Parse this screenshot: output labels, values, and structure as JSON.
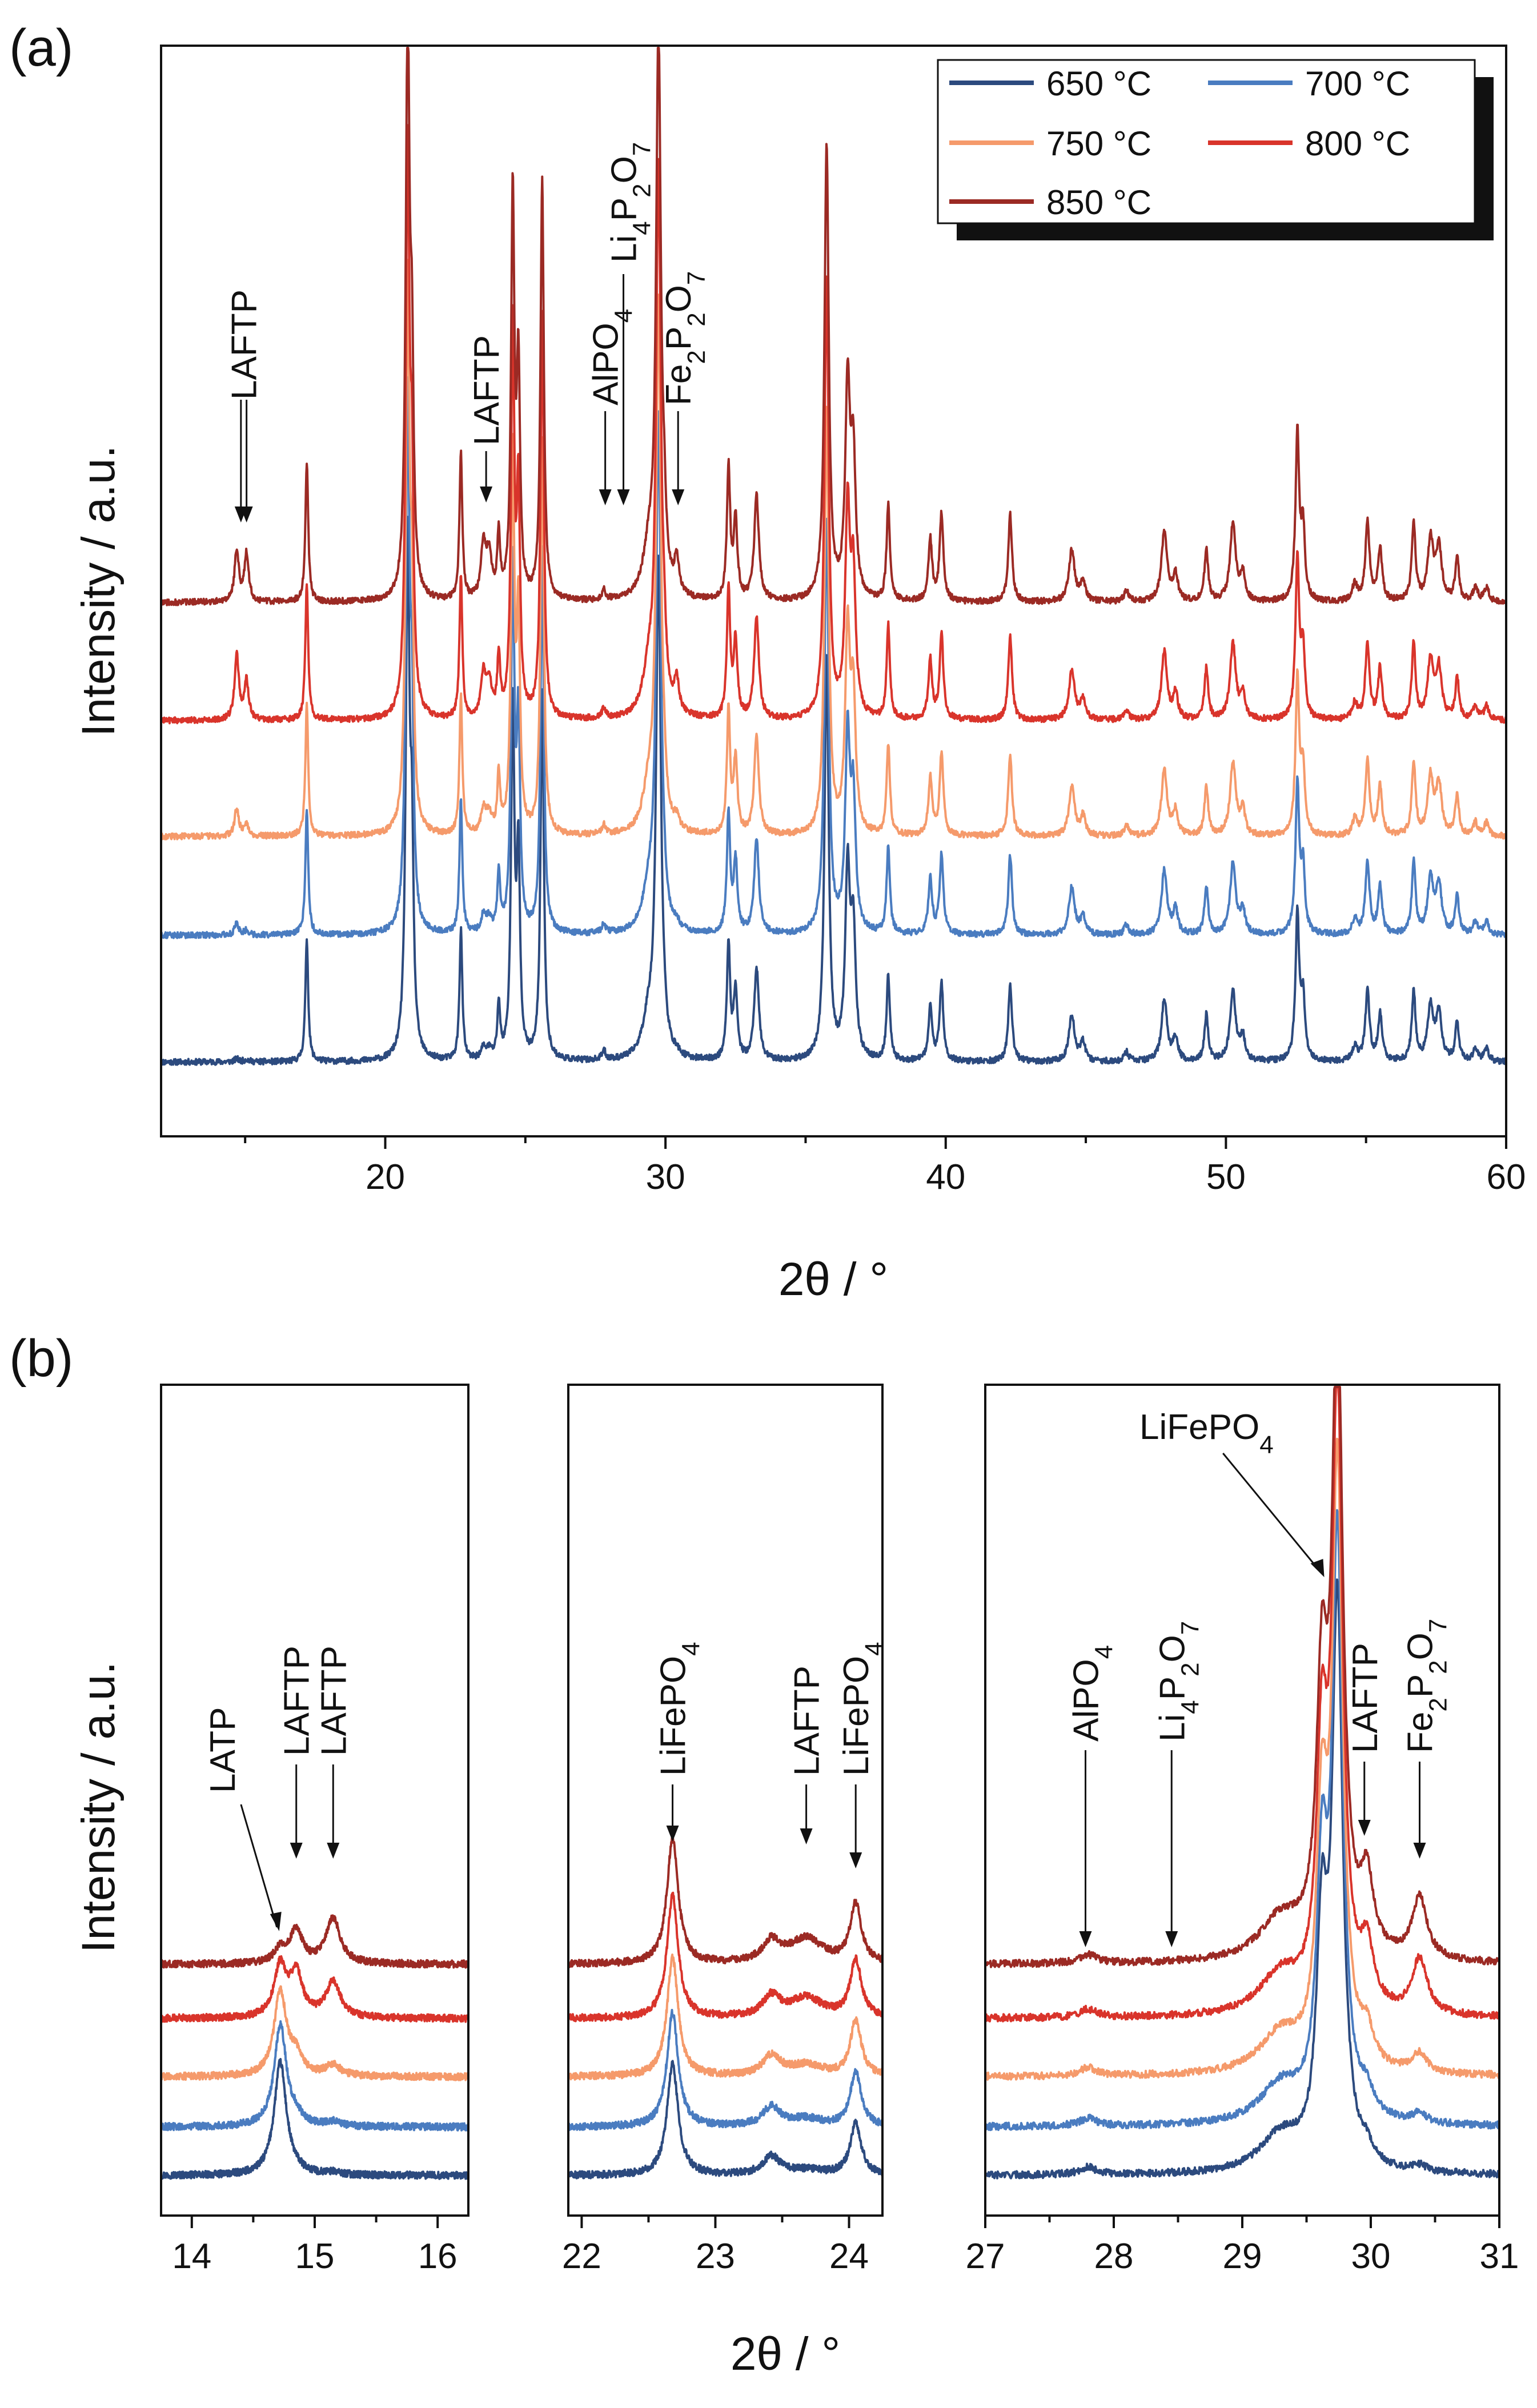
{
  "chart_data": [
    {
      "type": "line",
      "panel_label": "(a)",
      "title": "",
      "xlabel": "2θ / °",
      "ylabel": "Intensity / a.u.",
      "xlim": [
        12,
        60
      ],
      "xticks": [
        "20",
        "30",
        "40",
        "50",
        "60"
      ],
      "legend_position": "top-right",
      "series": [
        {
          "name": "650 °C",
          "color": "#2c4a7e",
          "offset": 0
        },
        {
          "name": "700 °C",
          "color": "#4a7cc0",
          "offset": 1
        },
        {
          "name": "750 °C",
          "color": "#f59a6b",
          "offset": 2
        },
        {
          "name": "800 °C",
          "color": "#d9342b",
          "offset": 3
        },
        {
          "name": "850 °C",
          "color": "#9b2a24",
          "offset": 4
        }
      ],
      "peaks": [
        {
          "pos": 14.7,
          "h": 0.55,
          "w": 0.09,
          "var": "lftp1"
        },
        {
          "pos": 15.05,
          "h": 0.28,
          "w": 0.09,
          "var": "lftp2"
        },
        {
          "pos": 17.2,
          "h": 0.8,
          "w": 0.06
        },
        {
          "pos": 20.8,
          "h": 3.3,
          "w": 0.08
        },
        {
          "pos": 20.95,
          "h": 1.2,
          "w": 0.07
        },
        {
          "pos": 22.7,
          "h": 0.85,
          "w": 0.06
        },
        {
          "pos": 23.5,
          "h": 0.3,
          "w": 0.1,
          "var": "lftp3"
        },
        {
          "pos": 23.7,
          "h": 0.25,
          "w": 0.12,
          "var": "lftp3"
        },
        {
          "pos": 24.05,
          "h": 0.35,
          "w": 0.06
        },
        {
          "pos": 24.55,
          "h": 2.3,
          "w": 0.07
        },
        {
          "pos": 24.75,
          "h": 1.3,
          "w": 0.07
        },
        {
          "pos": 25.6,
          "h": 2.4,
          "w": 0.07
        },
        {
          "pos": 27.8,
          "h": 0.06,
          "w": 0.08
        },
        {
          "pos": 29.4,
          "h": 0.25,
          "w": 0.25
        },
        {
          "pos": 29.75,
          "h": 3.2,
          "w": 0.1
        },
        {
          "pos": 29.95,
          "h": 0.3,
          "w": 0.08,
          "var": "lftp3"
        },
        {
          "pos": 30.4,
          "h": 0.2,
          "w": 0.1,
          "var": "fe"
        },
        {
          "pos": 32.25,
          "h": 0.75,
          "w": 0.07
        },
        {
          "pos": 32.5,
          "h": 0.45,
          "w": 0.08
        },
        {
          "pos": 33.25,
          "h": 0.6,
          "w": 0.1
        },
        {
          "pos": 35.75,
          "h": 2.6,
          "w": 0.09
        },
        {
          "pos": 36.5,
          "h": 1.2,
          "w": 0.1
        },
        {
          "pos": 36.7,
          "h": 0.8,
          "w": 0.1
        },
        {
          "pos": 37.95,
          "h": 0.55,
          "w": 0.07
        },
        {
          "pos": 39.45,
          "h": 0.35,
          "w": 0.08
        },
        {
          "pos": 39.85,
          "h": 0.5,
          "w": 0.08
        },
        {
          "pos": 42.3,
          "h": 0.5,
          "w": 0.08
        },
        {
          "pos": 44.5,
          "h": 0.3,
          "w": 0.12
        },
        {
          "pos": 44.9,
          "h": 0.12,
          "w": 0.1
        },
        {
          "pos": 46.45,
          "h": 0.06,
          "w": 0.1
        },
        {
          "pos": 47.8,
          "h": 0.4,
          "w": 0.12
        },
        {
          "pos": 48.2,
          "h": 0.15,
          "w": 0.1
        },
        {
          "pos": 49.3,
          "h": 0.3,
          "w": 0.08
        },
        {
          "pos": 50.25,
          "h": 0.45,
          "w": 0.12
        },
        {
          "pos": 50.6,
          "h": 0.15,
          "w": 0.1
        },
        {
          "pos": 52.55,
          "h": 0.95,
          "w": 0.08
        },
        {
          "pos": 52.75,
          "h": 0.4,
          "w": 0.08
        },
        {
          "pos": 54.6,
          "h": 0.1,
          "w": 0.1
        },
        {
          "pos": 55.05,
          "h": 0.45,
          "w": 0.09
        },
        {
          "pos": 55.5,
          "h": 0.3,
          "w": 0.09
        },
        {
          "pos": 56.7,
          "h": 0.45,
          "w": 0.08
        },
        {
          "pos": 57.3,
          "h": 0.35,
          "w": 0.12
        },
        {
          "pos": 57.6,
          "h": 0.3,
          "w": 0.12
        },
        {
          "pos": 58.25,
          "h": 0.25,
          "w": 0.08
        },
        {
          "pos": 58.9,
          "h": 0.08,
          "w": 0.1
        },
        {
          "pos": 59.3,
          "h": 0.08,
          "w": 0.1
        }
      ],
      "annotations": [
        {
          "label": "LAFTP",
          "x": 14.85
        },
        {
          "label": "LAFTP",
          "x": 15.05
        },
        {
          "label": "LAFTP",
          "x": 23.6
        },
        {
          "label": "AlPO4",
          "x": 27.85
        },
        {
          "label": "Li4P2O7",
          "x": 28.5
        },
        {
          "label": "Fe2P2O7",
          "x": 30.45
        }
      ]
    },
    {
      "type": "line",
      "panel_label": "(b)",
      "xlabel": "2θ / °",
      "ylabel": "Intensity / a.u.",
      "subplots": [
        {
          "xlim": [
            13.75,
            16.25
          ],
          "xticks": [
            "14",
            "15",
            "16"
          ],
          "peaks": [
            {
              "pos": 14.72,
              "h": 0.55,
              "w": 0.06,
              "var": "latp"
            },
            {
              "pos": 14.85,
              "h": 0.3,
              "w": 0.06,
              "var": "lftp1"
            },
            {
              "pos": 15.15,
              "h": 0.22,
              "w": 0.07,
              "var": "lftp2"
            }
          ]
        },
        {
          "xlim": [
            21.9,
            24.25
          ],
          "xticks": [
            "22",
            "23",
            "24"
          ],
          "peaks": [
            {
              "pos": 22.68,
              "h": 0.6,
              "w": 0.05
            },
            {
              "pos": 23.42,
              "h": 0.1,
              "w": 0.08
            },
            {
              "pos": 23.68,
              "h": 0.12,
              "w": 0.15,
              "var": "lftp3"
            },
            {
              "pos": 24.05,
              "h": 0.28,
              "w": 0.05
            }
          ]
        },
        {
          "xlim": [
            27,
            31
          ],
          "xticks": [
            "27",
            "28",
            "29",
            "30",
            "31"
          ],
          "peaks": [
            {
              "pos": 27.8,
              "h": 0.04,
              "w": 0.08
            },
            {
              "pos": 29.3,
              "h": 0.2,
              "w": 0.2
            },
            {
              "pos": 29.62,
              "h": 1.2,
              "w": 0.05
            },
            {
              "pos": 29.74,
              "h": 3.0,
              "w": 0.05
            },
            {
              "pos": 29.97,
              "h": 0.35,
              "w": 0.06,
              "var": "lftp3"
            },
            {
              "pos": 30.38,
              "h": 0.3,
              "w": 0.07,
              "var": "fe"
            }
          ]
        }
      ],
      "annotations": [
        {
          "label": "LATP",
          "x": 14.72
        },
        {
          "label": "LAFTP",
          "x": 14.85
        },
        {
          "label": "LAFTP",
          "x": 15.15
        },
        {
          "label": "LiFePO4",
          "x": 22.68
        },
        {
          "label": "LAFTP",
          "x": 23.68
        },
        {
          "label": "LiFePO4",
          "x": 24.05
        },
        {
          "label": "AlPO4",
          "x": 27.78
        },
        {
          "label": "Li4P2O7",
          "x": 28.45
        },
        {
          "label": "LiFePO4",
          "x": 29.72
        },
        {
          "label": "LAFTP",
          "x": 29.95
        },
        {
          "label": "Fe2P2O7",
          "x": 30.38
        }
      ]
    }
  ]
}
